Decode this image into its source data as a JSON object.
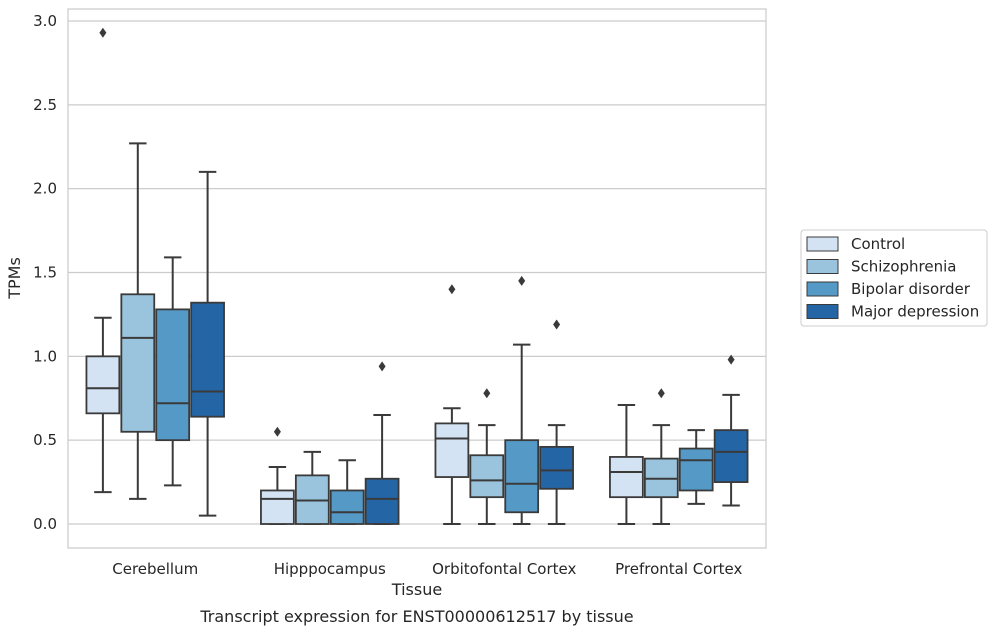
{
  "chart_data": {
    "type": "box",
    "xlabel": "Tissue",
    "ylabel": "TPMs",
    "caption": "Transcript expression for ENST00000612517 by tissue",
    "ylim": [
      -0.14,
      3.08
    ],
    "yticks": [
      "0.0",
      "0.5",
      "1.0",
      "1.5",
      "2.0",
      "2.5",
      "3.0"
    ],
    "grid": "horizontal",
    "legend_position": "right",
    "categories": [
      "Cerebellum",
      "Hipppocampus",
      "Orbitofontal Cortex",
      "Prefrontal Cortex"
    ],
    "series": [
      {
        "name": "Control",
        "color": "#d4e3f3",
        "boxes": [
          {
            "whislo": 0.19,
            "q1": 0.66,
            "med": 0.81,
            "q3": 1.0,
            "whishi": 1.23,
            "fliers": [
              2.93
            ]
          },
          {
            "whislo": 0.0,
            "q1": 0.0,
            "med": 0.15,
            "q3": 0.2,
            "whishi": 0.34,
            "fliers": [
              0.55
            ]
          },
          {
            "whislo": 0.0,
            "q1": 0.28,
            "med": 0.51,
            "q3": 0.6,
            "whishi": 0.69,
            "fliers": [
              1.4
            ]
          },
          {
            "whislo": 0.0,
            "q1": 0.16,
            "med": 0.31,
            "q3": 0.4,
            "whishi": 0.71,
            "fliers": []
          }
        ]
      },
      {
        "name": "Schizophrenia",
        "color": "#9ac4dd",
        "boxes": [
          {
            "whislo": 0.15,
            "q1": 0.55,
            "med": 1.11,
            "q3": 1.37,
            "whishi": 2.27,
            "fliers": []
          },
          {
            "whislo": 0.0,
            "q1": 0.0,
            "med": 0.14,
            "q3": 0.29,
            "whishi": 0.43,
            "fliers": []
          },
          {
            "whislo": 0.0,
            "q1": 0.16,
            "med": 0.26,
            "q3": 0.41,
            "whishi": 0.59,
            "fliers": [
              0.78
            ]
          },
          {
            "whislo": 0.0,
            "q1": 0.16,
            "med": 0.27,
            "q3": 0.39,
            "whishi": 0.59,
            "fliers": [
              0.78
            ]
          }
        ]
      },
      {
        "name": "Bipolar disorder",
        "color": "#5599c7",
        "boxes": [
          {
            "whislo": 0.23,
            "q1": 0.5,
            "med": 0.72,
            "q3": 1.28,
            "whishi": 1.59,
            "fliers": []
          },
          {
            "whislo": 0.0,
            "q1": 0.0,
            "med": 0.07,
            "q3": 0.2,
            "whishi": 0.38,
            "fliers": []
          },
          {
            "whislo": 0.0,
            "q1": 0.07,
            "med": 0.24,
            "q3": 0.5,
            "whishi": 1.07,
            "fliers": [
              1.45
            ]
          },
          {
            "whislo": 0.12,
            "q1": 0.2,
            "med": 0.38,
            "q3": 0.45,
            "whishi": 0.56,
            "fliers": []
          }
        ]
      },
      {
        "name": "Major depression",
        "color": "#2465a6",
        "boxes": [
          {
            "whislo": 0.05,
            "q1": 0.64,
            "med": 0.79,
            "q3": 1.32,
            "whishi": 2.1,
            "fliers": []
          },
          {
            "whislo": 0.0,
            "q1": 0.0,
            "med": 0.15,
            "q3": 0.27,
            "whishi": 0.65,
            "fliers": [
              0.94
            ]
          },
          {
            "whislo": 0.0,
            "q1": 0.21,
            "med": 0.32,
            "q3": 0.46,
            "whishi": 0.59,
            "fliers": [
              1.19
            ]
          },
          {
            "whislo": 0.11,
            "q1": 0.25,
            "med": 0.43,
            "q3": 0.56,
            "whishi": 0.77,
            "fliers": [
              0.98
            ]
          }
        ]
      }
    ]
  }
}
